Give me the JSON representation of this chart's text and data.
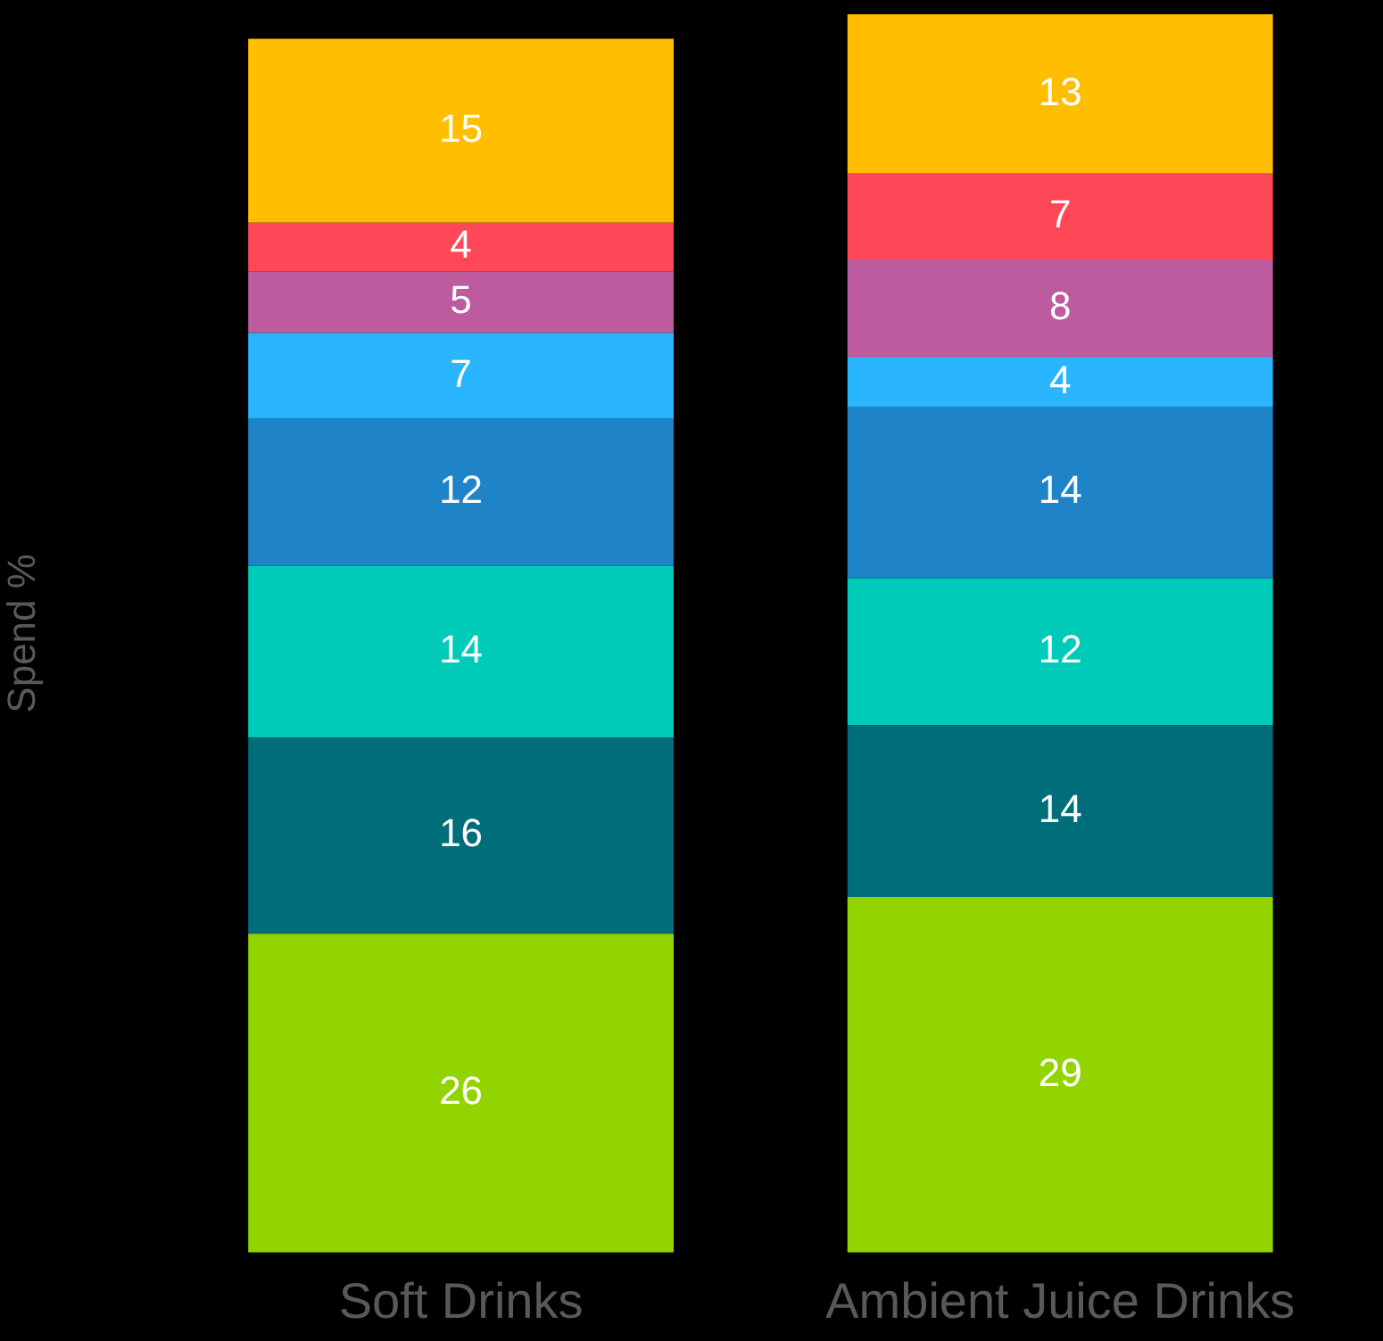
{
  "chart_data": {
    "type": "bar",
    "stacked": true,
    "ylabel": "Spend %",
    "categories": [
      "Soft Drinks",
      "Ambient Juice Drinks"
    ],
    "data_labels": true,
    "legend": false,
    "grid": false,
    "series": [
      {
        "color": "#92d400",
        "values": [
          26,
          29
        ]
      },
      {
        "color": "#006d7a",
        "values": [
          16,
          14
        ]
      },
      {
        "color": "#00cbb8",
        "values": [
          14,
          12
        ]
      },
      {
        "color": "#1f83c8",
        "values": [
          12,
          14
        ]
      },
      {
        "color": "#29b6ff",
        "values": [
          7,
          4
        ]
      },
      {
        "color": "#bc5b9e",
        "values": [
          5,
          8
        ]
      },
      {
        "color": "#ff4757",
        "values": [
          4,
          7
        ]
      },
      {
        "color": "#ffbf00",
        "values": [
          15,
          13
        ]
      }
    ]
  }
}
